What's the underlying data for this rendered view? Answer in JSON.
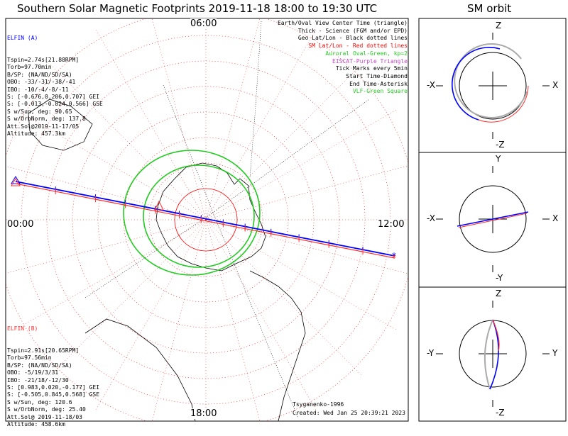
{
  "title": "Southern Solar Magnetic Footprints 2019-11-18 18:00 to 19:30 UTC",
  "sm_title": "SM orbit",
  "clock_labels": {
    "top": "06:00",
    "left": "00:00",
    "right": "12:00",
    "bottom": "18:00"
  },
  "elfin_a": {
    "name": "ELFIN (A)",
    "color": "#0000ff",
    "lines": [
      "Tspin=2.74s[21.88RPM]",
      "Torb=97.70min",
      "B/SP: (NA/ND/SD/SA)",
      "OBO: -33/-31/-38/-41",
      "IBO: -10/-4/-8/-11",
      "S: [-0.676,0.206,0.707] GEI",
      "S: [-0.013,-0.824,0.566] GSE",
      "S w/Sun, deg: 90.65",
      "S w/OrbNorm, deg: 137.8",
      "Att.Sol@2019-11-17/05",
      "Altitude: 457.3km"
    ]
  },
  "elfin_b": {
    "name": "ELFIN (B)",
    "color": "#ff3030",
    "lines": [
      "Tspin=2.91s[20.65RPM]",
      "Torb=97.56min",
      "B/SP: (NA/ND/SD/SA)",
      "OBO: -5/19/3/31",
      "IBO: -21/18/-12/30",
      "S: [0.983,0.020,-0.177] GEI",
      "S: [-0.505,0.845,0.568] GSE",
      "S w/Sun, deg: 120.6",
      "S w/OrbNorm, deg: 25.40",
      "Att.Sol@ 2019-11-18/03",
      "Altitude: 458.6km"
    ]
  },
  "legend": [
    {
      "text": "Earth/Oval View Center Time (triangle)",
      "color": "#000000"
    },
    {
      "text": "Thick - Science (FGM and/or EPD)",
      "color": "#000000"
    },
    {
      "text": "Geo Lat/Lon - Black dotted lines",
      "color": "#000000"
    },
    {
      "text": "SM Lat/Lon - Red dotted lines",
      "color": "#ff0000"
    },
    {
      "text": "Auroral Oval-Green, kp=2",
      "color": "#22cc22"
    },
    {
      "text": "EISCAT-Purple Triangle",
      "color": "#cc44cc"
    },
    {
      "text": "Tick Marks every 5min",
      "color": "#000000"
    },
    {
      "text": "Start Time-Diamond",
      "color": "#000000"
    },
    {
      "text": "End Time-Asterisk",
      "color": "#000000"
    },
    {
      "text": "VLF-Green Square",
      "color": "#22cc22"
    }
  ],
  "footer": {
    "author": "Tsyganenko-1996",
    "created": "Created: Wed Jan 25 20:39:21 2023"
  },
  "sm_panels": [
    {
      "top": "Z",
      "bottom": "-Z",
      "left": "-X",
      "right": "X"
    },
    {
      "top": "Y",
      "bottom": "-Y",
      "left": "-X",
      "right": "X"
    },
    {
      "top": "Z",
      "bottom": "-Z",
      "left": "-Y",
      "right": "Y"
    }
  ],
  "chart_data": {
    "type": "line",
    "projection": "south-polar magnetic local time dial",
    "time_range": [
      "2019-11-18 18:00",
      "2019-11-18 19:30"
    ],
    "series": [
      {
        "name": "ELFIN (A)",
        "color": "#0000ff",
        "track": [
          [
            0.0,
            0.62
          ],
          [
            0.2,
            0.53
          ],
          [
            0.4,
            0.43
          ],
          [
            0.55,
            0.33
          ],
          [
            0.7,
            0.23
          ],
          [
            0.82,
            0.17
          ],
          [
            0.93,
            0.12
          ],
          [
            1.04,
            0.12
          ],
          [
            1.15,
            0.18
          ],
          [
            1.28,
            0.28
          ],
          [
            1.42,
            0.4
          ],
          [
            1.57,
            0.5
          ],
          [
            1.74,
            0.59
          ],
          [
            1.9,
            0.65
          ]
        ]
      },
      {
        "name": "ELFIN (B)",
        "color": "#ff3030",
        "track": [
          [
            0.0,
            0.63
          ],
          [
            0.2,
            0.54
          ],
          [
            0.4,
            0.44
          ],
          [
            0.55,
            0.35
          ],
          [
            0.7,
            0.25
          ],
          [
            0.82,
            0.19
          ],
          [
            0.93,
            0.14
          ],
          [
            1.04,
            0.14
          ],
          [
            1.15,
            0.2
          ],
          [
            1.28,
            0.3
          ],
          [
            1.42,
            0.42
          ],
          [
            1.57,
            0.52
          ],
          [
            1.74,
            0.61
          ],
          [
            1.9,
            0.67
          ]
        ]
      }
    ],
    "auroral_oval_kp": 2
  }
}
